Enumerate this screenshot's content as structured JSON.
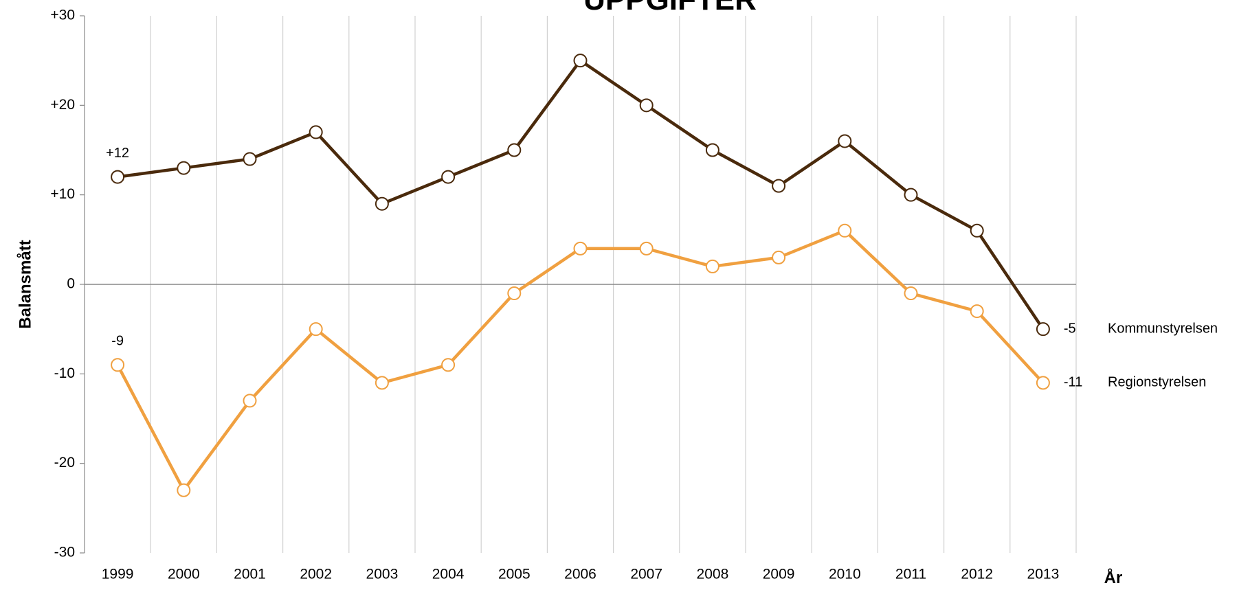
{
  "chart_data": {
    "type": "line",
    "title": "UPPGIFTER",
    "y_label": "Balansmått",
    "x_label": "År",
    "categories": [
      "1999",
      "2000",
      "2001",
      "2002",
      "2003",
      "2004",
      "2005",
      "2006",
      "2007",
      "2008",
      "2009",
      "2010",
      "2011",
      "2012",
      "2013"
    ],
    "series": [
      {
        "name": "Kommunstyrelsen",
        "color": "#4a2a0c",
        "values": [
          12,
          13,
          14,
          17,
          9,
          12,
          15,
          25,
          20,
          15,
          11,
          16,
          10,
          6,
          -5
        ],
        "value_labels": [
          "+12",
          null,
          null,
          null,
          null,
          null,
          null,
          null,
          null,
          null,
          null,
          null,
          null,
          null,
          "-5"
        ]
      },
      {
        "name": "Regionstyrelsen",
        "color": "#f0a040",
        "values": [
          -9,
          -23,
          -13,
          -5,
          -11,
          -9,
          -1,
          4,
          4,
          2,
          3,
          6,
          -1,
          -3,
          -11
        ],
        "value_labels": [
          "-9",
          null,
          null,
          null,
          null,
          null,
          null,
          null,
          null,
          null,
          null,
          null,
          null,
          null,
          "-11"
        ]
      }
    ],
    "ylim": [
      -30,
      30
    ],
    "yticks": [
      {
        "value": 30,
        "label": "+30"
      },
      {
        "value": 20,
        "label": "+20"
      },
      {
        "value": 10,
        "label": "+10"
      },
      0,
      -10,
      -20,
      -30
    ]
  }
}
